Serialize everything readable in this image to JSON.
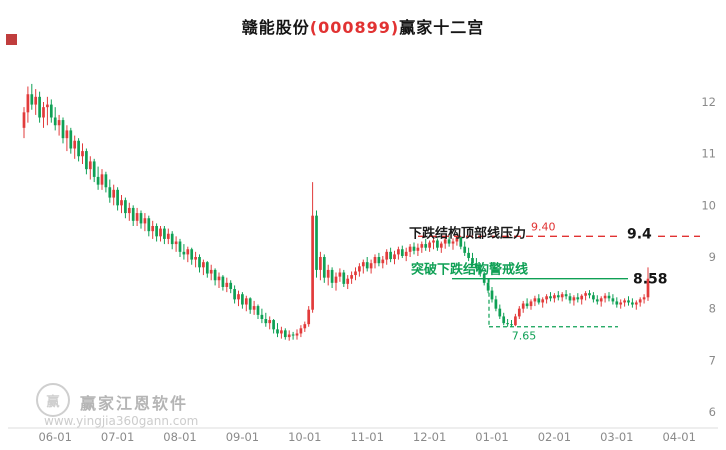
{
  "title": {
    "stock_name": "赣能股份",
    "stock_code": "(000899)",
    "suffix": "赢家十二宫"
  },
  "colors": {
    "up": "#e23b3b",
    "down": "#0fa055",
    "resistance": "#e13232",
    "axis_text": "#8a8a8a",
    "annotation_text": "#1a1a1a",
    "price_label_text": "#151515"
  },
  "watermark": {
    "logo_char": "赢",
    "brand": "赢家江恩软件",
    "url": "www.yingjia360gann.com"
  },
  "annotations": {
    "resistance_label": "下跌结构顶部线压力",
    "resistance_price_small": "9.40",
    "resistance_price_big": "9.4",
    "resistance_price": 9.4,
    "warning_label": "突破下跌结构警戒线",
    "warning_price_big": "8.58",
    "warning_price": 8.58,
    "support_price_small": "7.65",
    "support_price": 7.65
  },
  "chart_data": {
    "type": "candlestick",
    "title": "赣能股份(000899)赢家十二宫",
    "x_tick_labels": [
      "06-01",
      "07-01",
      "08-01",
      "09-01",
      "10-01",
      "11-01",
      "12-01",
      "01-01",
      "02-01",
      "03-01",
      "04-01"
    ],
    "y_tick_labels": [
      "6",
      "7",
      "8",
      "9",
      "10",
      "11",
      "12"
    ],
    "ylim": [
      6,
      12.6
    ],
    "grid": false,
    "legend": false,
    "candles": [
      [
        11.5,
        11.9,
        11.3,
        11.8
      ],
      [
        11.8,
        12.3,
        11.6,
        12.15
      ],
      [
        12.15,
        12.35,
        11.85,
        11.95
      ],
      [
        11.95,
        12.25,
        11.75,
        12.1
      ],
      [
        12.1,
        12.2,
        11.6,
        11.7
      ],
      [
        11.7,
        12.0,
        11.5,
        11.9
      ],
      [
        11.9,
        12.1,
        11.55,
        11.95
      ],
      [
        11.95,
        12.05,
        11.6,
        11.7
      ],
      [
        11.7,
        11.9,
        11.45,
        11.55
      ],
      [
        11.55,
        11.75,
        11.35,
        11.65
      ],
      [
        11.65,
        11.7,
        11.2,
        11.3
      ],
      [
        11.3,
        11.55,
        11.05,
        11.45
      ],
      [
        11.45,
        11.5,
        11.0,
        11.1
      ],
      [
        11.1,
        11.35,
        10.9,
        11.25
      ],
      [
        11.25,
        11.3,
        10.85,
        10.95
      ],
      [
        10.95,
        11.2,
        10.8,
        11.05
      ],
      [
        11.05,
        11.1,
        10.6,
        10.7
      ],
      [
        10.7,
        10.95,
        10.5,
        10.85
      ],
      [
        10.85,
        10.9,
        10.45,
        10.55
      ],
      [
        10.55,
        10.75,
        10.3,
        10.4
      ],
      [
        10.4,
        10.7,
        10.3,
        10.6
      ],
      [
        10.6,
        10.65,
        10.25,
        10.35
      ],
      [
        10.35,
        10.5,
        10.05,
        10.15
      ],
      [
        10.15,
        10.4,
        10.0,
        10.3
      ],
      [
        10.3,
        10.35,
        9.9,
        10.0
      ],
      [
        10.0,
        10.2,
        9.85,
        10.1
      ],
      [
        10.1,
        10.15,
        9.75,
        9.85
      ],
      [
        9.85,
        10.05,
        9.7,
        9.95
      ],
      [
        9.95,
        10.0,
        9.6,
        9.7
      ],
      [
        9.7,
        9.95,
        9.6,
        9.85
      ],
      [
        9.85,
        9.9,
        9.55,
        9.65
      ],
      [
        9.65,
        9.85,
        9.5,
        9.75
      ],
      [
        9.75,
        9.8,
        9.4,
        9.5
      ],
      [
        9.5,
        9.7,
        9.35,
        9.6
      ],
      [
        9.6,
        9.65,
        9.3,
        9.4
      ],
      [
        9.4,
        9.6,
        9.3,
        9.55
      ],
      [
        9.55,
        9.6,
        9.25,
        9.35
      ],
      [
        9.35,
        9.55,
        9.25,
        9.45
      ],
      [
        9.45,
        9.5,
        9.15,
        9.25
      ],
      [
        9.25,
        9.4,
        9.1,
        9.3
      ],
      [
        9.3,
        9.35,
        9.0,
        9.1
      ],
      [
        9.1,
        9.25,
        8.95,
        9.05
      ],
      [
        9.05,
        9.2,
        8.9,
        9.15
      ],
      [
        9.15,
        9.18,
        8.85,
        8.95
      ],
      [
        8.95,
        9.1,
        8.8,
        9.0
      ],
      [
        9.0,
        9.05,
        8.7,
        8.8
      ],
      [
        8.8,
        8.95,
        8.65,
        8.9
      ],
      [
        8.9,
        8.92,
        8.6,
        8.68
      ],
      [
        8.68,
        8.85,
        8.55,
        8.75
      ],
      [
        8.75,
        8.78,
        8.45,
        8.55
      ],
      [
        8.55,
        8.7,
        8.4,
        8.62
      ],
      [
        8.62,
        8.65,
        8.35,
        8.42
      ],
      [
        8.42,
        8.6,
        8.32,
        8.5
      ],
      [
        8.5,
        8.55,
        8.3,
        8.38
      ],
      [
        8.38,
        8.45,
        8.1,
        8.18
      ],
      [
        8.18,
        8.35,
        8.05,
        8.28
      ],
      [
        8.28,
        8.32,
        8.0,
        8.08
      ],
      [
        8.08,
        8.25,
        7.95,
        8.2
      ],
      [
        8.2,
        8.22,
        7.9,
        7.98
      ],
      [
        7.98,
        8.15,
        7.88,
        8.05
      ],
      [
        8.05,
        8.08,
        7.8,
        7.88
      ],
      [
        7.88,
        8.0,
        7.72,
        7.8
      ],
      [
        7.8,
        7.92,
        7.65,
        7.72
      ],
      [
        7.72,
        7.85,
        7.6,
        7.78
      ],
      [
        7.78,
        7.8,
        7.52,
        7.6
      ],
      [
        7.6,
        7.72,
        7.45,
        7.52
      ],
      [
        7.52,
        7.65,
        7.42,
        7.58
      ],
      [
        7.58,
        7.62,
        7.4,
        7.45
      ],
      [
        7.45,
        7.58,
        7.38,
        7.5
      ],
      [
        7.5,
        7.55,
        7.4,
        7.48
      ],
      [
        7.48,
        7.6,
        7.4,
        7.52
      ],
      [
        7.52,
        7.68,
        7.45,
        7.62
      ],
      [
        7.62,
        7.75,
        7.55,
        7.7
      ],
      [
        7.7,
        8.05,
        7.65,
        7.98
      ],
      [
        7.98,
        10.45,
        7.92,
        9.8
      ],
      [
        9.8,
        9.9,
        8.6,
        8.75
      ],
      [
        8.75,
        9.1,
        8.55,
        9.0
      ],
      [
        9.0,
        9.05,
        8.5,
        8.6
      ],
      [
        8.6,
        8.85,
        8.45,
        8.75
      ],
      [
        8.75,
        8.8,
        8.4,
        8.5
      ],
      [
        8.5,
        8.7,
        8.35,
        8.62
      ],
      [
        8.62,
        8.78,
        8.52,
        8.7
      ],
      [
        8.7,
        8.75,
        8.42,
        8.48
      ],
      [
        8.48,
        8.65,
        8.38,
        8.58
      ],
      [
        8.58,
        8.72,
        8.48,
        8.65
      ],
      [
        8.65,
        8.8,
        8.55,
        8.72
      ],
      [
        8.72,
        8.88,
        8.62,
        8.82
      ],
      [
        8.82,
        8.95,
        8.68,
        8.9
      ],
      [
        8.9,
        9.0,
        8.72,
        8.78
      ],
      [
        8.78,
        8.95,
        8.68,
        8.88
      ],
      [
        8.88,
        9.05,
        8.78,
        9.0
      ],
      [
        9.0,
        9.08,
        8.82,
        8.88
      ],
      [
        8.88,
        9.02,
        8.78,
        8.95
      ],
      [
        8.95,
        9.15,
        8.85,
        9.1
      ],
      [
        9.1,
        9.18,
        8.9,
        8.96
      ],
      [
        8.96,
        9.12,
        8.86,
        9.05
      ],
      [
        9.05,
        9.2,
        8.95,
        9.15
      ],
      [
        9.15,
        9.22,
        8.98,
        9.02
      ],
      [
        9.02,
        9.18,
        8.92,
        9.1
      ],
      [
        9.1,
        9.25,
        9.0,
        9.2
      ],
      [
        9.2,
        9.28,
        9.05,
        9.12
      ],
      [
        9.12,
        9.26,
        9.02,
        9.18
      ],
      [
        9.18,
        9.3,
        9.08,
        9.25
      ],
      [
        9.25,
        9.35,
        9.12,
        9.18
      ],
      [
        9.18,
        9.32,
        9.1,
        9.28
      ],
      [
        9.28,
        9.38,
        9.15,
        9.32
      ],
      [
        9.32,
        9.36,
        9.12,
        9.18
      ],
      [
        9.18,
        9.3,
        9.08,
        9.26
      ],
      [
        9.26,
        9.38,
        9.16,
        9.34
      ],
      [
        9.34,
        9.4,
        9.2,
        9.26
      ],
      [
        9.26,
        9.36,
        9.14,
        9.3
      ],
      [
        9.3,
        9.4,
        9.22,
        9.38
      ],
      [
        9.38,
        9.4,
        9.15,
        9.2
      ],
      [
        9.2,
        9.3,
        9.02,
        9.08
      ],
      [
        9.08,
        9.18,
        8.92,
        8.98
      ],
      [
        8.98,
        9.08,
        8.82,
        8.88
      ],
      [
        8.88,
        8.98,
        8.72,
        8.78
      ],
      [
        8.78,
        8.88,
        8.62,
        8.68
      ],
      [
        8.68,
        8.72,
        8.45,
        8.5
      ],
      [
        8.5,
        8.58,
        8.3,
        8.35
      ],
      [
        8.35,
        8.42,
        8.12,
        8.18
      ],
      [
        8.18,
        8.25,
        7.95,
        8.0
      ],
      [
        8.0,
        8.08,
        7.8,
        7.85
      ],
      [
        7.85,
        7.92,
        7.68,
        7.72
      ],
      [
        7.72,
        7.8,
        7.65,
        7.7
      ],
      [
        7.7,
        7.78,
        7.65,
        7.68
      ],
      [
        7.68,
        7.9,
        7.66,
        7.85
      ],
      [
        7.85,
        8.05,
        7.8,
        8.0
      ],
      [
        8.0,
        8.15,
        7.92,
        8.1
      ],
      [
        8.1,
        8.2,
        8.0,
        8.05
      ],
      [
        8.05,
        8.18,
        7.98,
        8.14
      ],
      [
        8.14,
        8.25,
        8.05,
        8.2
      ],
      [
        8.2,
        8.28,
        8.08,
        8.12
      ],
      [
        8.12,
        8.22,
        8.02,
        8.18
      ],
      [
        8.18,
        8.28,
        8.1,
        8.24
      ],
      [
        8.24,
        8.32,
        8.14,
        8.2
      ],
      [
        8.2,
        8.3,
        8.12,
        8.26
      ],
      [
        8.26,
        8.34,
        8.16,
        8.22
      ],
      [
        8.22,
        8.32,
        8.14,
        8.28
      ],
      [
        8.28,
        8.36,
        8.18,
        8.24
      ],
      [
        8.24,
        8.3,
        8.1,
        8.16
      ],
      [
        8.16,
        8.26,
        8.06,
        8.22
      ],
      [
        8.22,
        8.3,
        8.12,
        8.18
      ],
      [
        8.18,
        8.28,
        8.08,
        8.25
      ],
      [
        8.25,
        8.34,
        8.16,
        8.3
      ],
      [
        8.3,
        8.36,
        8.2,
        8.26
      ],
      [
        8.26,
        8.32,
        8.12,
        8.18
      ],
      [
        8.18,
        8.26,
        8.08,
        8.14
      ],
      [
        8.14,
        8.24,
        8.04,
        8.2
      ],
      [
        8.2,
        8.3,
        8.12,
        8.25
      ],
      [
        8.25,
        8.32,
        8.14,
        8.2
      ],
      [
        8.2,
        8.28,
        8.08,
        8.14
      ],
      [
        8.14,
        8.22,
        8.02,
        8.08
      ],
      [
        8.08,
        8.18,
        8.0,
        8.12
      ],
      [
        8.12,
        8.2,
        8.04,
        8.16
      ],
      [
        8.16,
        8.24,
        8.06,
        8.12
      ],
      [
        8.12,
        8.2,
        8.02,
        8.08
      ],
      [
        8.08,
        8.16,
        7.98,
        8.12
      ],
      [
        8.12,
        8.22,
        8.04,
        8.18
      ],
      [
        8.18,
        8.28,
        8.1,
        8.22
      ],
      [
        8.22,
        8.8,
        8.15,
        8.58
      ]
    ]
  }
}
